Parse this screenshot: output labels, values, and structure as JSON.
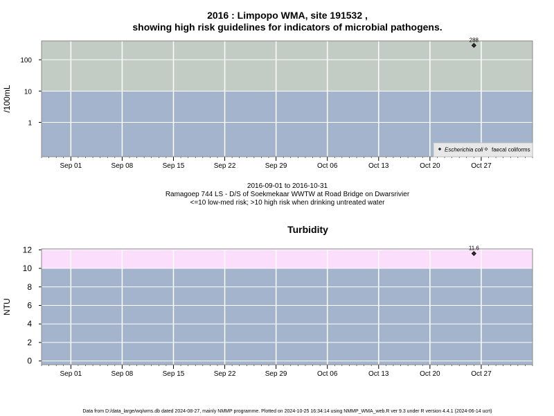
{
  "top_title_line1": "2016 : Limpopo WMA, site 191532 ,",
  "top_title_line2": "showing high risk guidelines for indicators of microbial pathogens.",
  "middle_lines": [
    "2016-09-01 to 2016-10-31",
    "Ramagoep 744 LS - D/S of Soekmekaar WWTW at Road Bridge on Dwarsrivier",
    "<=10 low-med risk; >10 high risk when drinking untreated water"
  ],
  "footer": "Data from D:/data_large/wq/wms.db dated 2024-08-27, mainly NMMP programme. Plotted on 2024-10-25 16:34:14 using NMMP_WMA_web.R ver 9.3 under R version 4.4.1 (2024-06-14 ucrt)",
  "colors": {
    "low_zone": "#a3b4cc",
    "high_zone_microbial": "#c3ccc4",
    "high_zone_turbidity": "#fbdefc",
    "grid": "#ffffff",
    "point": "#333333"
  },
  "chart_data": [
    {
      "type": "scatter",
      "title": "",
      "ylabel": "/100mL",
      "yscale": "log",
      "ylim": [
        0.08,
        400
      ],
      "yticks": [
        1,
        10,
        100
      ],
      "ytick_labels": [
        "1",
        "10",
        "100"
      ],
      "xlim": [
        "2016-08-28",
        "2016-11-03"
      ],
      "xticks": [
        "2016-09-01",
        "2016-09-08",
        "2016-09-15",
        "2016-09-22",
        "2016-09-29",
        "2016-10-06",
        "2016-10-13",
        "2016-10-20",
        "2016-10-27"
      ],
      "xtick_labels": [
        "Sep 01",
        "Sep 08",
        "Sep 15",
        "Sep 22",
        "Sep 29",
        "Oct 06",
        "Oct 13",
        "Oct 20",
        "Oct 27"
      ],
      "threshold": 10,
      "legend": {
        "position": "bottom-right",
        "entries": [
          "Escherichia coli",
          "faecal coliforms"
        ]
      },
      "series": [
        {
          "name": "Escherichia coli",
          "marker": "filled-diamond",
          "points": [
            {
              "x": "2016-10-26",
              "y": 288,
              "label": "288"
            }
          ]
        },
        {
          "name": "faecal coliforms",
          "marker": "open-diamond",
          "points": []
        }
      ]
    },
    {
      "type": "scatter",
      "title": "Turbidity",
      "ylabel": "NTU",
      "yscale": "linear",
      "ylim": [
        -0.4,
        12.1
      ],
      "yticks": [
        0,
        2,
        4,
        6,
        8,
        10,
        12
      ],
      "ytick_labels": [
        "0",
        "2",
        "4",
        "6",
        "8",
        "10",
        "12"
      ],
      "xlim": [
        "2016-08-28",
        "2016-11-03"
      ],
      "xticks": [
        "2016-09-01",
        "2016-09-08",
        "2016-09-15",
        "2016-09-22",
        "2016-09-29",
        "2016-10-06",
        "2016-10-13",
        "2016-10-20",
        "2016-10-27"
      ],
      "xtick_labels": [
        "Sep 01",
        "Sep 08",
        "Sep 15",
        "Sep 22",
        "Sep 29",
        "Oct 06",
        "Oct 13",
        "Oct 20",
        "Oct 27"
      ],
      "threshold": 10,
      "series": [
        {
          "name": "",
          "marker": "filled-diamond",
          "points": [
            {
              "x": "2016-10-26",
              "y": 11.6,
              "label": "11.6"
            }
          ]
        }
      ]
    }
  ]
}
